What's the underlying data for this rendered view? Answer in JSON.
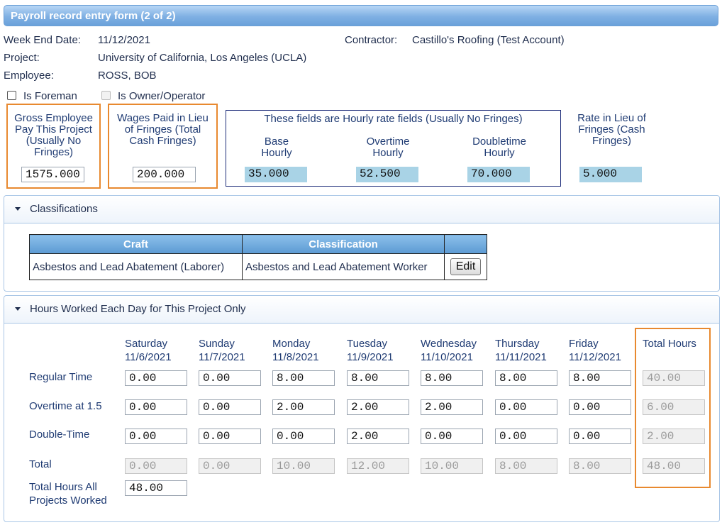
{
  "window": {
    "title": "Payroll record entry form (2 of 2)"
  },
  "header": {
    "week_end_label": "Week End Date:",
    "week_end_value": "11/12/2021",
    "contractor_label": "Contractor:",
    "contractor_value": "Castillo's Roofing (Test Account)",
    "project_label": "Project:",
    "project_value": "University of California, Los Angeles (UCLA)",
    "employee_label": "Employee:",
    "employee_value": "ROSS, BOB",
    "is_foreman_label": "Is Foreman",
    "is_owner_label": "Is Owner/Operator"
  },
  "pay": {
    "gross_line1": "Gross Employee",
    "gross_line2": "Pay This Project",
    "gross_line3": "(Usually No",
    "gross_line4": "Fringes)",
    "gross_value": "1575.000",
    "wages_line1": "Wages Paid in Lieu",
    "wages_line2": "of Fringes (Total",
    "wages_line3": "Cash Fringes)",
    "wages_value": "200.000",
    "hourly_title": "These fields are Hourly rate fields (Usually No Fringes)",
    "base_line1": "Base",
    "base_line2": "Hourly",
    "base_value": "35.000",
    "ot_line1": "Overtime",
    "ot_line2": "Hourly",
    "ot_value": "52.500",
    "dt_line1": "Doubletime",
    "dt_line2": "Hourly",
    "dt_value": "70.000",
    "rate_line1": "Rate in Lieu of",
    "rate_line2": "Fringes (Cash",
    "rate_line3": "Fringes)",
    "rate_value": "5.000"
  },
  "classifications": {
    "title": "Classifications",
    "col_craft": "Craft",
    "col_class": "Classification",
    "craft": "Asbestos and Lead Abatement (Laborer)",
    "classification": "Asbestos and Lead Abatement Worker",
    "edit_label": "Edit"
  },
  "hours": {
    "title": "Hours Worked Each Day for This Project Only",
    "days": [
      {
        "name": "Saturday",
        "date": "11/6/2021"
      },
      {
        "name": "Sunday",
        "date": "11/7/2021"
      },
      {
        "name": "Monday",
        "date": "11/8/2021"
      },
      {
        "name": "Tuesday",
        "date": "11/9/2021"
      },
      {
        "name": "Wednesday",
        "date": "11/10/2021"
      },
      {
        "name": "Thursday",
        "date": "11/11/2021"
      },
      {
        "name": "Friday",
        "date": "11/12/2021"
      }
    ],
    "total_hours_label": "Total Hours",
    "row_labels": {
      "regular": "Regular Time",
      "overtime": "Overtime at 1.5",
      "double": "Double-Time",
      "total": "Total"
    },
    "regular": [
      "0.00",
      "0.00",
      "8.00",
      "8.00",
      "8.00",
      "8.00",
      "8.00"
    ],
    "overtime": [
      "0.00",
      "0.00",
      "2.00",
      "2.00",
      "2.00",
      "0.00",
      "0.00"
    ],
    "double": [
      "0.00",
      "0.00",
      "0.00",
      "2.00",
      "0.00",
      "0.00",
      "0.00"
    ],
    "total": [
      "0.00",
      "0.00",
      "10.00",
      "12.00",
      "10.00",
      "8.00",
      "8.00"
    ],
    "row_totals": {
      "regular": "40.00",
      "overtime": "6.00",
      "double": "2.00",
      "total": "48.00"
    },
    "all_projects_line1": "Total Hours All",
    "all_projects_line2": "Projects Worked",
    "all_projects_value": "48.00"
  }
}
